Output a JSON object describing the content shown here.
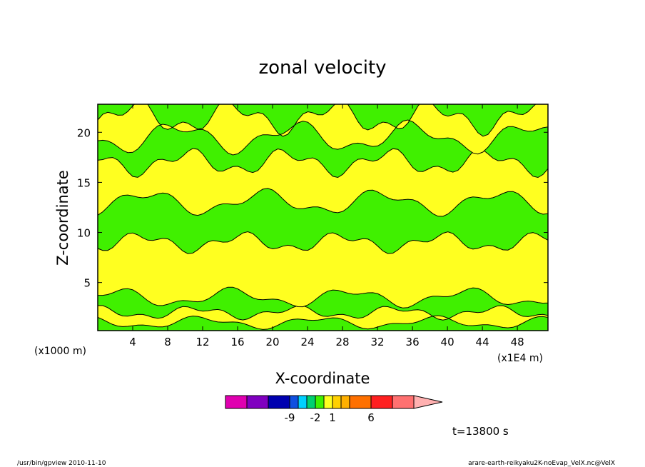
{
  "chart_data": {
    "type": "heatmap",
    "subtype": "filled-contour",
    "title": "zonal velocity",
    "xlabel": "X-coordinate",
    "ylabel": "Z-coordinate",
    "x_unit_label": "(x1E4 m)",
    "y_unit_label": "(x1000 m)",
    "xlim": [
      0,
      51.5
    ],
    "ylim": [
      0.2,
      22.8
    ],
    "x_ticks": [
      4,
      8,
      12,
      16,
      20,
      24,
      28,
      32,
      36,
      40,
      44,
      48
    ],
    "y_ticks": [
      5,
      10,
      15,
      20
    ],
    "colorbar": {
      "colors": [
        "#e000b0",
        "#8000c0",
        "#0000b0",
        "#1050e0",
        "#00d0ff",
        "#00d070",
        "#40f000",
        "#ffff20",
        "#ffd000",
        "#ffb000",
        "#ff7000",
        "#ff2020",
        "#ff7070",
        "#ffb0b0"
      ],
      "labels": [
        {
          "text": "-9",
          "index": 2
        },
        {
          "text": "-2",
          "index": 5
        },
        {
          "text": "1",
          "index": 7
        },
        {
          "text": "6",
          "index": 10
        }
      ]
    },
    "layers": [
      {
        "name": "green band",
        "z_min": 0.2,
        "z_max": 1.0,
        "level": "-1..0"
      },
      {
        "name": "yellow band",
        "z_min": 1.0,
        "z_max": 2.0,
        "level": "0..1"
      },
      {
        "name": "green band",
        "z_min": 2.0,
        "z_max": 3.5,
        "level": "-1..0"
      },
      {
        "name": "yellow band",
        "z_min": 3.5,
        "z_max": 9.0,
        "level": "0..1"
      },
      {
        "name": "green band",
        "z_min": 9.0,
        "z_max": 13.0,
        "level": "-1..0"
      },
      {
        "name": "yellow band",
        "z_min": 13.0,
        "z_max": 17.0,
        "level": "0..1"
      },
      {
        "name": "green band",
        "z_min": 17.0,
        "z_max": 19.5,
        "level": "-1..0"
      },
      {
        "name": "yellow band",
        "z_min": 19.5,
        "z_max": 21.5,
        "level": "0..1"
      },
      {
        "name": "green band",
        "z_min": 21.5,
        "z_max": 22.8,
        "level": "-1..0"
      }
    ]
  },
  "time_label": "t=13800 s",
  "footer": {
    "left": "/usr/bin/gpview   2010-11-10",
    "right": "arare-earth-reikyaku2K-noEvap_VelX.nc@VelX"
  }
}
